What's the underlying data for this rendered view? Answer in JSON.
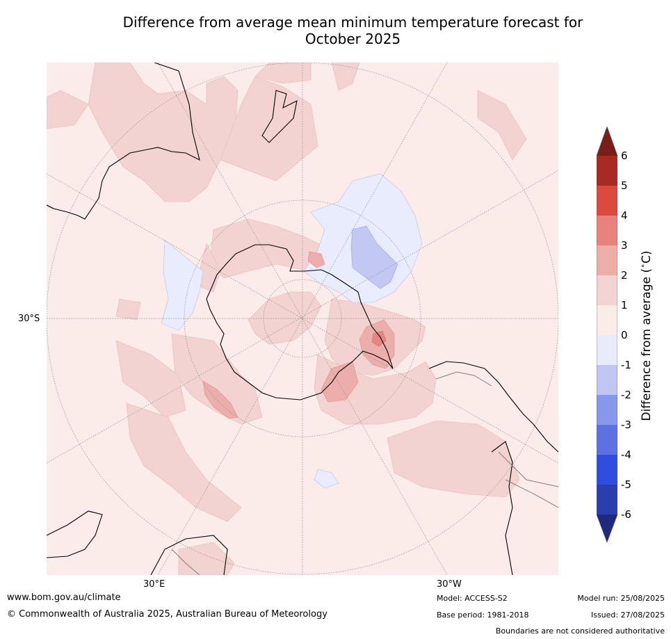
{
  "title": {
    "line1": "Difference from average mean minimum temperature forecast for",
    "line2": "October 2025"
  },
  "map": {
    "projection": "south-polar stereographic",
    "lat_labels": [
      "30°S"
    ],
    "lon_labels": [
      "30°E",
      "30°W"
    ],
    "colors": {
      "background_0_to_1": "#fbebe9",
      "1_to_2": "#f3d3d1",
      "2_to_3": "#ecaeaa",
      "3_to_4": "#e38782",
      "0_to_minus1": "#e8ecfc",
      "minus1_to_minus2": "#c2c8f2",
      "coastline": "#000000",
      "boundaries": "#7f7f7f",
      "graticule": "#888888"
    }
  },
  "colorbar": {
    "label": "Difference from average ($^\\circ$C)",
    "label_display": "Difference from average (",
    "label_unit": "C)",
    "ticks": [
      "6",
      "5",
      "4",
      "3",
      "2",
      "1",
      "0",
      "-1",
      "-2",
      "-3",
      "-4",
      "-5",
      "-6"
    ],
    "colors": [
      "#a82a22",
      "#dc4a3f",
      "#e7837c",
      "#edaea8",
      "#f4d4d2",
      "#fbebe9",
      "#e8ebfb",
      "#c0c6f2",
      "#8797ec",
      "#5d71e3",
      "#2f4ddf",
      "#2a3fac"
    ],
    "extend_max_color": "#7a1e17",
    "extend_min_color": "#1f2a7e"
  },
  "footer": {
    "website": "www.bom.gov.au/climate",
    "copyright": "© Commonwealth of Australia 2025, Australian Bureau of Meteorology",
    "model": "Model: ACCESS-S2",
    "base_period": "Base period: 1981-2018",
    "model_run": "Model run: 25/08/2025",
    "issued": "Issued: 27/08/2025",
    "disclaimer": "Boundaries are not considered authoritative"
  }
}
